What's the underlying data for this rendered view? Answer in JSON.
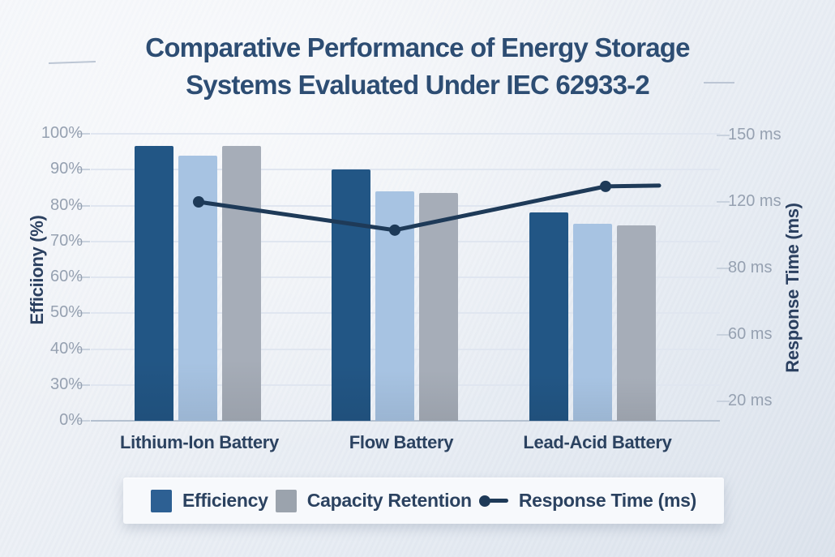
{
  "title": {
    "line1": "Comparative Performance of Energy Storage",
    "line2": "Systems Evaluated Under IEC 62933-2",
    "color": "#2d4d73"
  },
  "chart_data": {
    "type": "bar+line combo, dual y-axis",
    "categories": [
      "Lithium-Ion Battery",
      "Flow Battery",
      "Lead-Acid Battery"
    ],
    "bar_series": [
      {
        "name": "Efficiency",
        "axis": "left",
        "color": "#225685",
        "values": [
          96.5,
          90,
          78
        ]
      },
      {
        "name": "Unlabeled light-blue bar",
        "axis": "left",
        "color": "#a7c3e2",
        "values": [
          94,
          84,
          75
        ]
      },
      {
        "name": "Capacity Retention",
        "axis": "left",
        "color": "#a6adb8",
        "values": [
          96.5,
          83.5,
          74.5
        ]
      }
    ],
    "line_series": {
      "name": "Response Time (ms)",
      "axis": "right",
      "color": "#1e3a58",
      "values": [
        120,
        103,
        127
      ],
      "trailing_end_value": 127
    },
    "y_left": {
      "label": "Efficiiony (%)",
      "ticks": [
        "100%",
        "90%",
        "80%",
        "70%",
        "60%",
        "50%",
        "40%",
        "30%",
        "0%"
      ],
      "tick_values": [
        100,
        90,
        80,
        70,
        60,
        50,
        40,
        30,
        0
      ]
    },
    "y_right": {
      "label": "Response Time (ms)",
      "ticks": [
        "150 ms",
        "120 ms",
        "80 ms",
        "60 ms",
        "20 ms"
      ],
      "tick_values": [
        150,
        120,
        80,
        60,
        20
      ]
    },
    "grid": "horizontal gridlines on, vertical off",
    "legend_position": "bottom"
  },
  "legend": {
    "items": [
      {
        "label": "Efficiency",
        "type": "square",
        "swatch": "#2d6093"
      },
      {
        "label": "Capacity Retention",
        "type": "square",
        "swatch": "#9ba3ad"
      },
      {
        "label": "Response Time (ms)",
        "type": "dot-dash",
        "swatch": "#1e3a58"
      }
    ]
  },
  "colors": {
    "background_light": "#f4f6fa",
    "background_dark": "#dce3ec",
    "gridline": "#e0e6f0",
    "axis_baseline": "#b4c0cf",
    "tick_text": "#96a1b1",
    "heading_text": "#2d4d73",
    "label_text": "#2b4260"
  }
}
